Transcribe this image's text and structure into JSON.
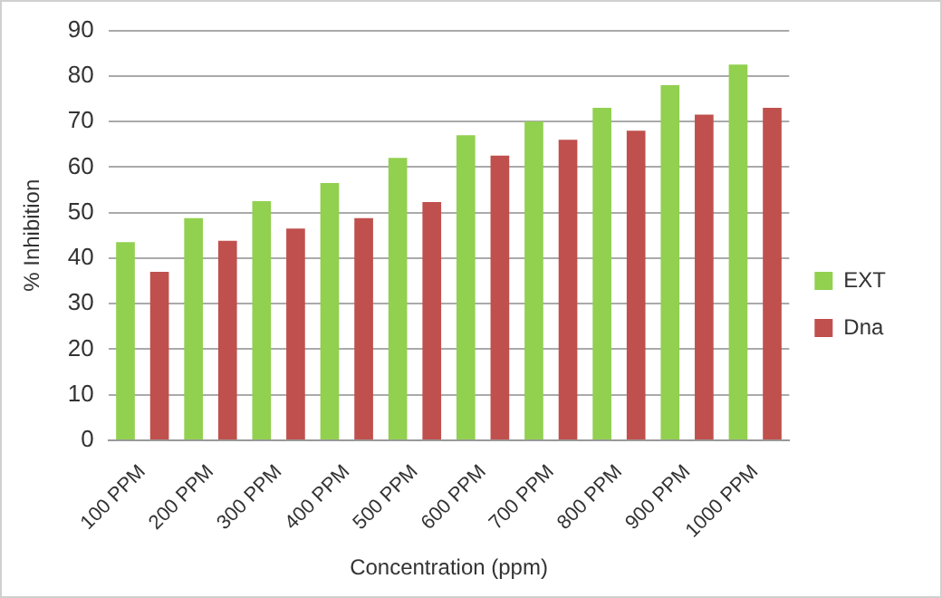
{
  "chart_data": {
    "type": "bar",
    "xlabel": "Concentration (ppm)",
    "ylabel": "% Inhibition",
    "categories": [
      "100 PPM",
      "200 PPM",
      "300 PPM",
      "400 PPM",
      "500 PPM",
      "600 PPM",
      "700 PPM",
      "800 PPM",
      "900 PPM",
      "1000 PPM"
    ],
    "series": [
      {
        "name": "EXT",
        "color": "#92d050",
        "values": [
          43.5,
          48.8,
          52.5,
          56.5,
          62,
          67,
          70,
          73,
          78,
          82.5
        ]
      },
      {
        "name": "Dna",
        "color": "#c0504d",
        "values": [
          37,
          43.8,
          46.5,
          48.8,
          52.3,
          62.5,
          66,
          68,
          71.5,
          73
        ]
      }
    ],
    "ylim": [
      0,
      90
    ],
    "yticks": [
      0,
      10,
      20,
      30,
      40,
      50,
      60,
      70,
      80,
      90
    ],
    "grid": "y",
    "legend": "right"
  }
}
